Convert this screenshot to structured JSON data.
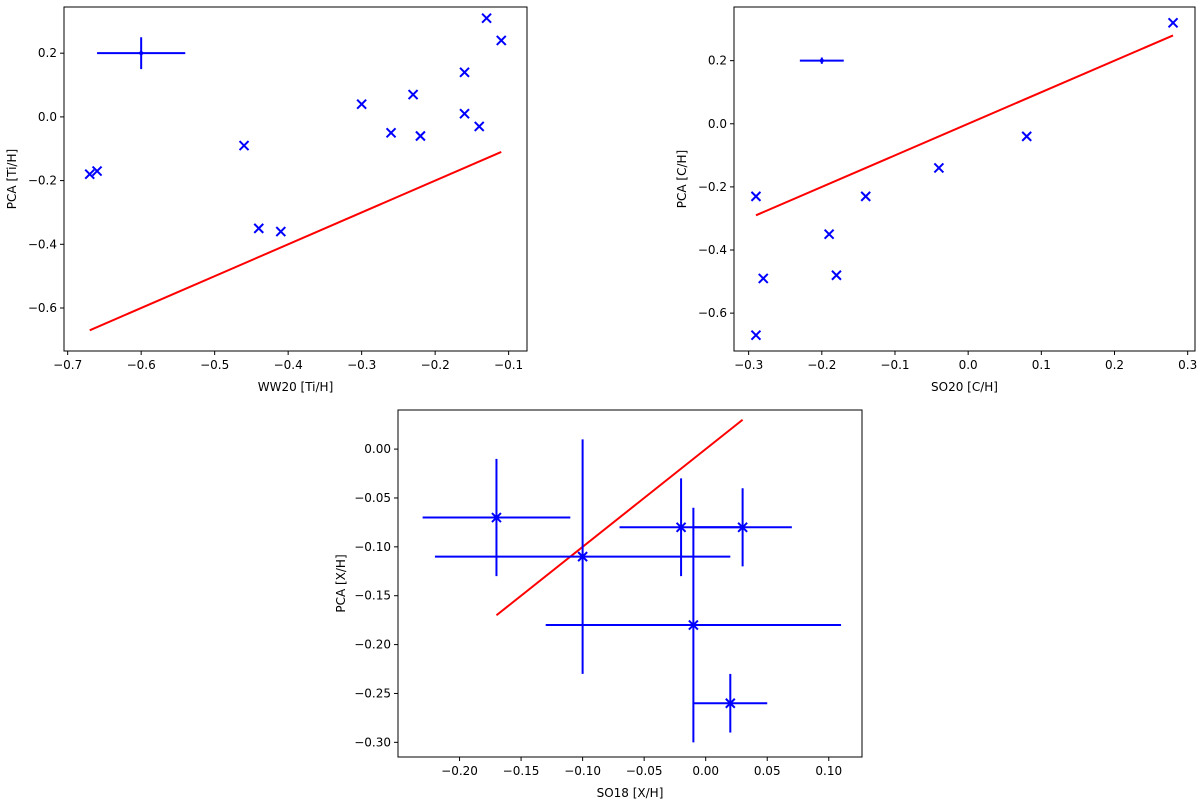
{
  "colors": {
    "points": "#0000ff",
    "fit": "#ff0000",
    "axes": "#000000"
  },
  "chart_data": [
    {
      "id": "ti",
      "type": "scatter",
      "xlabel": "WW20 [Ti/H]",
      "ylabel": "PCA [Ti/H]",
      "xlim": [
        -0.705,
        -0.075
      ],
      "ylim": [
        -0.735,
        0.345
      ],
      "xticks": [
        -0.7,
        -0.6,
        -0.5,
        -0.4,
        -0.3,
        -0.2,
        -0.1
      ],
      "xtick_labels": [
        "−0.7",
        "−0.6",
        "−0.5",
        "−0.4",
        "−0.3",
        "−0.2",
        "−0.1"
      ],
      "yticks": [
        -0.6,
        -0.4,
        -0.2,
        0.0,
        0.2
      ],
      "ytick_labels": [
        "−0.6",
        "−0.4",
        "−0.2",
        "0.0",
        "0.2"
      ],
      "points": [
        {
          "x": -0.67,
          "y": -0.18
        },
        {
          "x": -0.66,
          "y": -0.17
        },
        {
          "x": -0.46,
          "y": -0.09
        },
        {
          "x": -0.44,
          "y": -0.35
        },
        {
          "x": -0.41,
          "y": -0.36
        },
        {
          "x": -0.3,
          "y": 0.04
        },
        {
          "x": -0.26,
          "y": -0.05
        },
        {
          "x": -0.23,
          "y": 0.07
        },
        {
          "x": -0.22,
          "y": -0.06
        },
        {
          "x": -0.16,
          "y": 0.14
        },
        {
          "x": -0.16,
          "y": 0.01
        },
        {
          "x": -0.14,
          "y": -0.03
        },
        {
          "x": -0.13,
          "y": 0.31
        },
        {
          "x": -0.11,
          "y": 0.24
        }
      ],
      "typical_error": {
        "x": -0.6,
        "y": 0.2,
        "xerr": 0.06,
        "yerr": 0.05
      },
      "fit_line": {
        "x": [
          -0.67,
          -0.11
        ],
        "y": [
          -0.67,
          -0.11
        ]
      }
    },
    {
      "id": "c",
      "type": "scatter",
      "xlabel": "SO20 [C/H]",
      "ylabel": "PCA [C/H]",
      "xlim": [
        -0.32,
        0.31
      ],
      "ylim": [
        -0.72,
        0.37
      ],
      "xticks": [
        -0.3,
        -0.2,
        -0.1,
        0.0,
        0.1,
        0.2,
        0.3
      ],
      "xtick_labels": [
        "−0.3",
        "−0.2",
        "−0.1",
        "0.0",
        "0.1",
        "0.2",
        "0.3"
      ],
      "yticks": [
        -0.6,
        -0.4,
        -0.2,
        0.0,
        0.2
      ],
      "ytick_labels": [
        "−0.6",
        "−0.4",
        "−0.2",
        "0.0",
        "0.2"
      ],
      "points": [
        {
          "x": -0.29,
          "y": -0.23
        },
        {
          "x": -0.29,
          "y": -0.67
        },
        {
          "x": -0.28,
          "y": -0.49
        },
        {
          "x": -0.19,
          "y": -0.35
        },
        {
          "x": -0.18,
          "y": -0.48
        },
        {
          "x": -0.14,
          "y": -0.23
        },
        {
          "x": -0.04,
          "y": -0.14
        },
        {
          "x": 0.08,
          "y": -0.04
        },
        {
          "x": 0.28,
          "y": 0.32
        }
      ],
      "typical_error": {
        "x": -0.2,
        "y": 0.2,
        "xerr": 0.03,
        "yerr": 0.01
      },
      "fit_line": {
        "x": [
          -0.29,
          0.28
        ],
        "y": [
          -0.29,
          0.28
        ]
      }
    },
    {
      "id": "x",
      "type": "scatter",
      "xlabel": "SO18 [X/H]",
      "ylabel": "PCA [X/H]",
      "xlim": [
        -0.25,
        0.127
      ],
      "ylim": [
        -0.315,
        0.04
      ],
      "xticks": [
        -0.2,
        -0.15,
        -0.1,
        -0.05,
        0.0,
        0.05,
        0.1
      ],
      "xtick_labels": [
        "−0.20",
        "−0.15",
        "−0.10",
        "−0.05",
        "0.00",
        "0.05",
        "0.10"
      ],
      "yticks": [
        0.0,
        -0.05,
        -0.1,
        -0.15,
        -0.2,
        -0.25,
        -0.3
      ],
      "ytick_labels": [
        "0.00",
        "−0.05",
        "−0.10",
        "−0.15",
        "−0.20",
        "−0.25",
        "−0.30"
      ],
      "points": [
        {
          "x": -0.17,
          "y": -0.07,
          "xerr": 0.06,
          "yerr": 0.06
        },
        {
          "x": -0.1,
          "y": -0.11,
          "xerr": 0.12,
          "yerr": 0.12
        },
        {
          "x": -0.02,
          "y": -0.08,
          "xerr": 0.05,
          "yerr": 0.05
        },
        {
          "x": 0.03,
          "y": -0.08,
          "xerr": 0.04,
          "yerr": 0.04
        },
        {
          "x": -0.01,
          "y": -0.18,
          "xerr": 0.12,
          "yerr": 0.12
        },
        {
          "x": 0.02,
          "y": -0.26,
          "xerr": 0.03,
          "yerr": 0.03
        }
      ],
      "fit_line": {
        "x": [
          -0.17,
          0.03
        ],
        "y": [
          -0.17,
          0.03
        ]
      }
    }
  ]
}
